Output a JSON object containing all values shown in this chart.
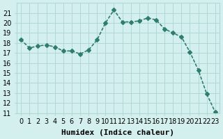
{
  "x": [
    0,
    1,
    2,
    3,
    4,
    5,
    6,
    7,
    8,
    9,
    10,
    11,
    12,
    13,
    14,
    15,
    16,
    17,
    18,
    19,
    20,
    21,
    22,
    23
  ],
  "y": [
    18.3,
    17.5,
    17.7,
    17.8,
    17.6,
    17.2,
    17.2,
    16.9,
    17.3,
    18.3,
    20.0,
    21.3,
    20.1,
    20.1,
    20.2,
    20.5,
    20.3,
    19.4,
    19.0,
    18.6,
    17.1,
    15.3,
    12.9,
    11.1
  ],
  "line_color": "#2e7d6e",
  "marker": "D",
  "marker_size": 3,
  "xlabel": "Humidex (Indice chaleur)",
  "ylabel": "",
  "ylim": [
    11,
    22
  ],
  "xlim": [
    -0.5,
    23.5
  ],
  "yticks": [
    11,
    12,
    13,
    14,
    15,
    16,
    17,
    18,
    19,
    20,
    21
  ],
  "xticks": [
    0,
    1,
    2,
    3,
    4,
    5,
    6,
    7,
    8,
    9,
    10,
    11,
    12,
    13,
    14,
    15,
    16,
    17,
    18,
    19,
    20,
    21,
    22,
    23
  ],
  "xtick_labels": [
    "0",
    "1",
    "2",
    "3",
    "4",
    "5",
    "6",
    "7",
    "8",
    "9",
    "10",
    "11",
    "12",
    "13",
    "14",
    "15",
    "16",
    "17",
    "18",
    "19",
    "20",
    "21",
    "22",
    "23"
  ],
  "background_color": "#d4f0ee",
  "grid_color": "#b0d8d4",
  "title": "",
  "line_width": 1.2,
  "ylabel_fontsize": 8,
  "xlabel_fontsize": 8,
  "tick_fontsize": 7
}
